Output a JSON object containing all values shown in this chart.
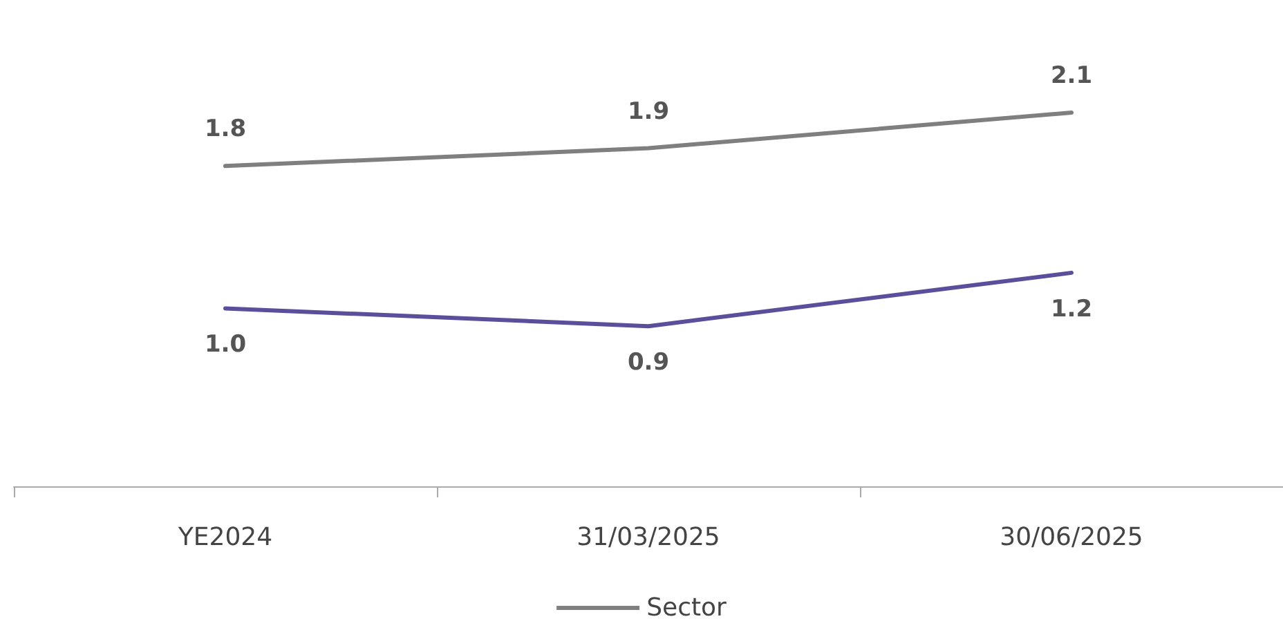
{
  "chart_data": {
    "type": "line",
    "categories": [
      "YE2024",
      "31/03/2025",
      "30/06/2025"
    ],
    "series": [
      {
        "color": "#5b4f9c",
        "values": [
          1.0,
          0.9,
          1.2
        ],
        "value_labels": [
          "1.0",
          "0.9",
          "1.2"
        ]
      },
      {
        "name": "Sector",
        "color": "#7f7f7f",
        "values": [
          1.8,
          1.9,
          2.1
        ],
        "value_labels": [
          "1.8",
          "1.9",
          "2.1"
        ]
      }
    ],
    "legend": "bottom",
    "marker": "none",
    "line_style": "solid"
  }
}
